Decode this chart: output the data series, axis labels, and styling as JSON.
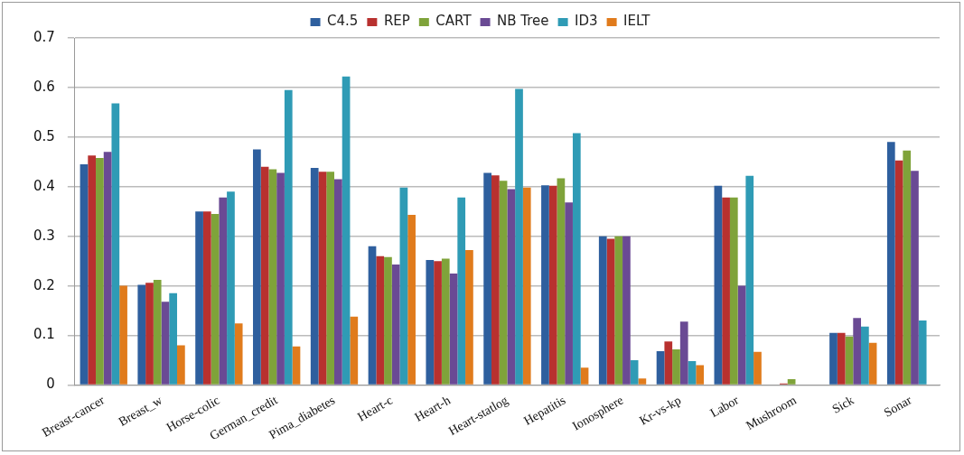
{
  "chart_data": {
    "type": "bar",
    "categories": [
      "Breast-cancer",
      "Breast_w",
      "Horse-colic",
      "German_credit",
      "Pima_diabetes",
      "Heart-c",
      "Heart-h",
      "Heart-statlog",
      "Hepatitis",
      "Ionosphere",
      "Kr-vs-kp",
      "Labor",
      "Mushroom",
      "Sick",
      "Sonar"
    ],
    "series": [
      {
        "name": "C4.5",
        "color": "#2e5f9e",
        "values": [
          0.445,
          0.202,
          0.35,
          0.475,
          0.438,
          0.28,
          0.252,
          0.428,
          0.403,
          0.3,
          0.068,
          0.402,
          0,
          0.105,
          0.49
        ]
      },
      {
        "name": "REP",
        "color": "#b8312f",
        "values": [
          0.463,
          0.206,
          0.35,
          0.44,
          0.43,
          0.26,
          0.25,
          0.423,
          0.402,
          0.295,
          0.088,
          0.378,
          0.003,
          0.105,
          0.453
        ]
      },
      {
        "name": "CART",
        "color": "#7fa33a",
        "values": [
          0.458,
          0.212,
          0.345,
          0.435,
          0.43,
          0.258,
          0.255,
          0.412,
          0.417,
          0.3,
          0.072,
          0.378,
          0.012,
          0.098,
          0.473
        ]
      },
      {
        "name": "NB Tree",
        "color": "#6a4a94",
        "values": [
          0.47,
          0.168,
          0.378,
          0.428,
          0.415,
          0.243,
          0.225,
          0.395,
          0.368,
          0.3,
          0.128,
          0.2,
          0,
          0.135,
          0.432
        ]
      },
      {
        "name": "ID3",
        "color": "#2f9bb5",
        "values": [
          0.568,
          0.185,
          0.39,
          0.595,
          0.622,
          0.398,
          0.378,
          0.597,
          0.508,
          0.05,
          0.048,
          0.422,
          0,
          0.118,
          0.13
        ]
      },
      {
        "name": "IELT",
        "color": "#e07b1c",
        "values": [
          0.2,
          0.08,
          0.124,
          0.078,
          0.138,
          0.343,
          0.272,
          0.398,
          0.035,
          0.013,
          0.04,
          0.067,
          0,
          0.085,
          0
        ]
      }
    ],
    "ylim": [
      0,
      0.7
    ],
    "yticks": [
      0,
      0.1,
      0.2,
      0.3,
      0.4,
      0.5,
      0.6,
      0.7
    ],
    "grid": "y",
    "legend": "top"
  }
}
